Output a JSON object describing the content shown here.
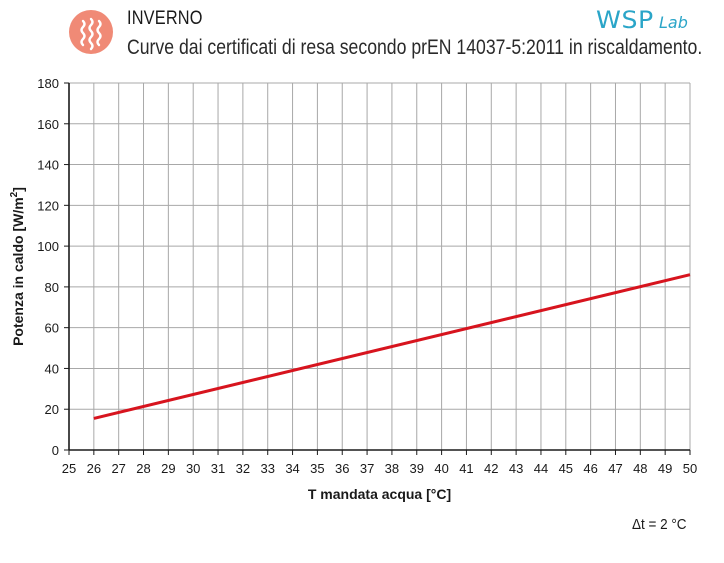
{
  "header": {
    "season": "INVERNO",
    "subtitle": "Curve dai certificati di resa secondo prEN 14037-5:2011 in riscaldamento.",
    "brand_main": "WSP",
    "brand_sub": "Lab",
    "badge_icon": "heat-waves-icon",
    "badge_color": "#f08a76",
    "brand_color": "#2aa5c8"
  },
  "note": "Δt = 2 °C",
  "chart_data": {
    "type": "line",
    "title": "",
    "xlabel": "T mandata acqua [°C]",
    "ylabel_main": "Potenza in caldo [W/m",
    "ylabel_sup": "2",
    "ylabel_end": "]",
    "xlim": [
      25,
      50
    ],
    "ylim": [
      0,
      180
    ],
    "x_ticks": [
      25,
      26,
      27,
      28,
      29,
      30,
      31,
      32,
      33,
      34,
      35,
      36,
      37,
      38,
      39,
      40,
      41,
      42,
      43,
      44,
      45,
      46,
      47,
      48,
      49,
      50
    ],
    "y_ticks": [
      0,
      20,
      40,
      60,
      80,
      100,
      120,
      140,
      160,
      180
    ],
    "grid": true,
    "series": [
      {
        "color": "#d7141e",
        "x": [
          26,
          50
        ],
        "y": [
          15.5,
          86
        ]
      }
    ]
  }
}
